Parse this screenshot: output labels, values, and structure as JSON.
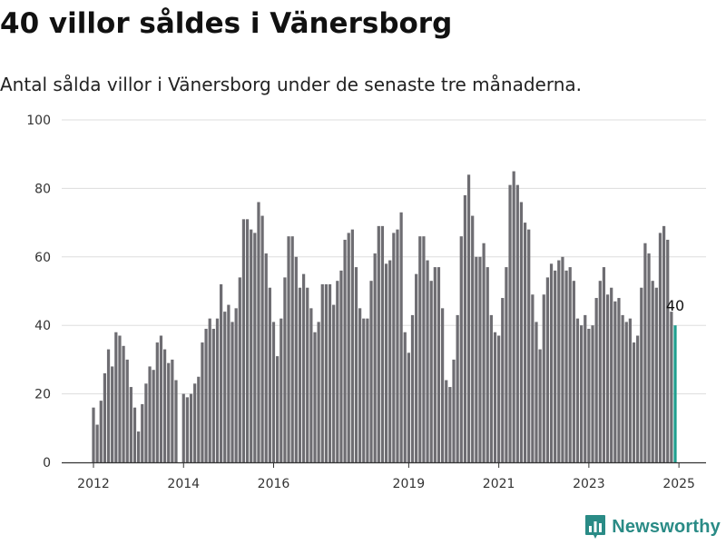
{
  "title": "40 villor såldes i Vänersborg",
  "subtitle": "Antal sålda villor i Vänersborg under de senaste tre månaderna.",
  "brand": {
    "name": "Newsworthy",
    "icon": "newsworthy-logo-icon",
    "color": "#2a8b86"
  },
  "colors": {
    "bar": "#6e6d72",
    "highlight": "#1f9e8e",
    "grid": "#dddddd",
    "axis": "#333333"
  },
  "chart_data": {
    "type": "bar",
    "title": "40 villor såldes i Vänersborg",
    "subtitle": "Antal sålda villor i Vänersborg under de senaste tre månaderna.",
    "ylim": [
      0,
      100
    ],
    "yticks": [
      "0",
      "20",
      "40",
      "60",
      "80",
      "100"
    ],
    "xtick_labels": [
      {
        "label": "2012",
        "x": 2012
      },
      {
        "label": "2014",
        "x": 2014
      },
      {
        "label": "2016",
        "x": 2016
      },
      {
        "label": "2019",
        "x": 2019
      },
      {
        "label": "2021",
        "x": 2021
      },
      {
        "label": "2023",
        "x": 2023
      },
      {
        "label": "2025",
        "x": 2025
      }
    ],
    "grid": true,
    "start": "2012-01",
    "end": "2025-01",
    "last_value_label": "40",
    "values": [
      16,
      11,
      18,
      26,
      33,
      28,
      38,
      37,
      34,
      30,
      22,
      16,
      9,
      17,
      23,
      28,
      27,
      35,
      37,
      33,
      29,
      30,
      24,
      0,
      20,
      19,
      20,
      23,
      25,
      35,
      39,
      42,
      39,
      42,
      52,
      44,
      46,
      41,
      45,
      54,
      71,
      71,
      68,
      67,
      76,
      72,
      61,
      51,
      41,
      31,
      42,
      54,
      66,
      66,
      60,
      51,
      55,
      51,
      45,
      38,
      41,
      52,
      52,
      52,
      46,
      53,
      56,
      65,
      67,
      68,
      57,
      45,
      42,
      42,
      53,
      61,
      69,
      69,
      58,
      59,
      67,
      68,
      73,
      38,
      32,
      43,
      55,
      66,
      66,
      59,
      53,
      57,
      57,
      45,
      24,
      22,
      30,
      43,
      66,
      78,
      84,
      72,
      60,
      60,
      64,
      57,
      43,
      38,
      37,
      48,
      57,
      81,
      85,
      81,
      76,
      70,
      68,
      49,
      41,
      33,
      49,
      54,
      58,
      56,
      59,
      60,
      56,
      57,
      53,
      42,
      40,
      43,
      39,
      40,
      48,
      53,
      57,
      49,
      51,
      47,
      48,
      43,
      41,
      42,
      35,
      37,
      51,
      64,
      61,
      53,
      51,
      67,
      69,
      65,
      44,
      40
    ]
  }
}
